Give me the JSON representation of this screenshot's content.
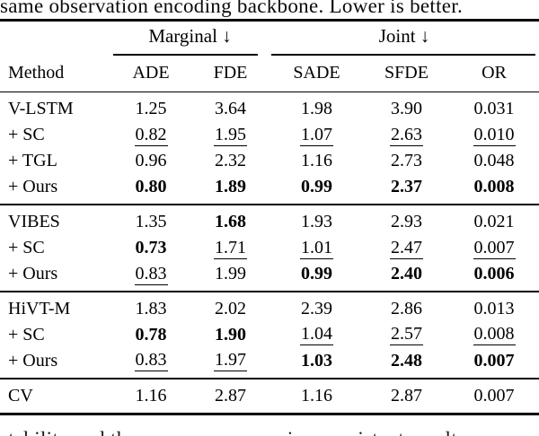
{
  "captions": {
    "top": "same observation encoding backbone. Lower is better.",
    "bottom": "stability and the same scenes receive consistent results"
  },
  "table": {
    "col_groups": [
      {
        "label": "Marginal ↓"
      },
      {
        "label": "Joint ↓"
      }
    ],
    "headers": {
      "method": "Method",
      "cols": [
        "ADE",
        "FDE",
        "SADE",
        "SFDE",
        "OR"
      ]
    },
    "groups": [
      {
        "rows": [
          {
            "method": "V-LSTM",
            "cells": [
              {
                "v": "1.25",
                "s": "n"
              },
              {
                "v": "3.64",
                "s": "n"
              },
              {
                "v": "1.98",
                "s": "n"
              },
              {
                "v": "3.90",
                "s": "n"
              },
              {
                "v": "0.031",
                "s": "n"
              }
            ]
          },
          {
            "method": "+ SC",
            "cells": [
              {
                "v": "0.82",
                "s": "u"
              },
              {
                "v": "1.95",
                "s": "u"
              },
              {
                "v": "1.07",
                "s": "u"
              },
              {
                "v": "2.63",
                "s": "u"
              },
              {
                "v": "0.010",
                "s": "u"
              }
            ]
          },
          {
            "method": "+ TGL",
            "cells": [
              {
                "v": "0.96",
                "s": "n"
              },
              {
                "v": "2.32",
                "s": "n"
              },
              {
                "v": "1.16",
                "s": "n"
              },
              {
                "v": "2.73",
                "s": "n"
              },
              {
                "v": "0.048",
                "s": "n"
              }
            ]
          },
          {
            "method": "+ Ours",
            "cells": [
              {
                "v": "0.80",
                "s": "b"
              },
              {
                "v": "1.89",
                "s": "b"
              },
              {
                "v": "0.99",
                "s": "b"
              },
              {
                "v": "2.37",
                "s": "b"
              },
              {
                "v": "0.008",
                "s": "b"
              }
            ]
          }
        ]
      },
      {
        "rows": [
          {
            "method": "VIBES",
            "cells": [
              {
                "v": "1.35",
                "s": "n"
              },
              {
                "v": "1.68",
                "s": "b"
              },
              {
                "v": "1.93",
                "s": "n"
              },
              {
                "v": "2.93",
                "s": "n"
              },
              {
                "v": "0.021",
                "s": "n"
              }
            ]
          },
          {
            "method": "+ SC",
            "cells": [
              {
                "v": "0.73",
                "s": "b"
              },
              {
                "v": "1.71",
                "s": "u"
              },
              {
                "v": "1.01",
                "s": "u"
              },
              {
                "v": "2.47",
                "s": "u"
              },
              {
                "v": "0.007",
                "s": "u"
              }
            ]
          },
          {
            "method": "+ Ours",
            "cells": [
              {
                "v": "0.83",
                "s": "u"
              },
              {
                "v": "1.99",
                "s": "n"
              },
              {
                "v": "0.99",
                "s": "b"
              },
              {
                "v": "2.40",
                "s": "b"
              },
              {
                "v": "0.006",
                "s": "b"
              }
            ]
          }
        ]
      },
      {
        "rows": [
          {
            "method": "HiVT-M",
            "cells": [
              {
                "v": "1.83",
                "s": "n"
              },
              {
                "v": "2.02",
                "s": "n"
              },
              {
                "v": "2.39",
                "s": "n"
              },
              {
                "v": "2.86",
                "s": "n"
              },
              {
                "v": "0.013",
                "s": "n"
              }
            ]
          },
          {
            "method": "+ SC",
            "cells": [
              {
                "v": "0.78",
                "s": "b"
              },
              {
                "v": "1.90",
                "s": "b"
              },
              {
                "v": "1.04",
                "s": "u"
              },
              {
                "v": "2.57",
                "s": "u"
              },
              {
                "v": "0.008",
                "s": "u"
              }
            ]
          },
          {
            "method": "+ Ours",
            "cells": [
              {
                "v": "0.83",
                "s": "u"
              },
              {
                "v": "1.97",
                "s": "u"
              },
              {
                "v": "1.03",
                "s": "b"
              },
              {
                "v": "2.48",
                "s": "b"
              },
              {
                "v": "0.007",
                "s": "b"
              }
            ]
          }
        ]
      },
      {
        "rows": [
          {
            "method": "CV",
            "cells": [
              {
                "v": "1.16",
                "s": "n"
              },
              {
                "v": "2.87",
                "s": "n"
              },
              {
                "v": "1.16",
                "s": "n"
              },
              {
                "v": "2.87",
                "s": "n"
              },
              {
                "v": "0.007",
                "s": "n"
              }
            ]
          }
        ]
      }
    ]
  }
}
